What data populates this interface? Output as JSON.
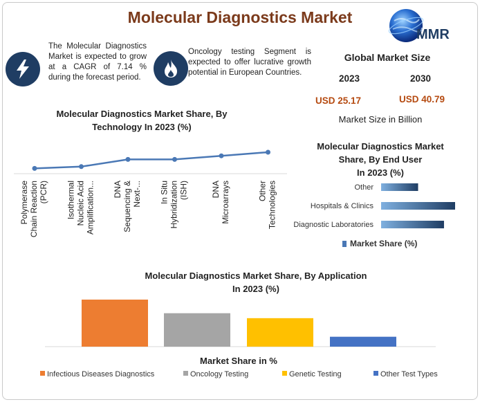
{
  "title": "Molecular Diagnostics Market",
  "logo_text": "MMR",
  "info": [
    {
      "icon": "lightning-icon",
      "text": "The Molecular Diagnostics Market is expected to grow at a CAGR of 7.14 % during the forecast period."
    },
    {
      "icon": "flame-icon",
      "text": "Oncology testing Segment is expected to offer lucrative growth potential in European Countries."
    }
  ],
  "global_market": {
    "title": "Global Market Size",
    "year_a": "2023",
    "year_b": "2030",
    "value_a": "USD 25.17",
    "value_b": "USD 40.79",
    "note": "Market Size in Billion"
  },
  "colors": {
    "title": "#7b3a1b",
    "navy": "#1f3d63",
    "line": "#4a78b5",
    "usd": "#b54a10"
  },
  "chart_data": [
    {
      "type": "line",
      "title": "Molecular Diagnostics Market Share, By Technology In 2023 (%)",
      "title_line1": "Molecular Diagnostics Market Share, By",
      "title_line2": "Technology In 2023 (%)",
      "categories": [
        [
          "Polymerase",
          "Chain Reaction",
          "(PCR)"
        ],
        [
          "Isothermal",
          "Nucleic Acid",
          "Amplification..."
        ],
        [
          "DNA",
          "Sequencing &",
          "Next-..."
        ],
        [
          "In Situ",
          "Hybridization",
          "(ISH)"
        ],
        [
          "DNA",
          "Microarrays"
        ],
        [
          "Other",
          "Technologies"
        ]
      ],
      "values": [
        16,
        17,
        21,
        21,
        23,
        25
      ],
      "ylim": [
        0,
        100
      ]
    },
    {
      "type": "bar",
      "orientation": "horizontal",
      "title": "Molecular Diagnostics Market Share, By End User In 2023 (%)",
      "title_line1": "Molecular Diagnostics Market",
      "title_line2": "Share, By End User",
      "title_line3": "In 2023 (%)",
      "categories": [
        "Other",
        "Hospitals & Clinics",
        "Diagnostic Laboratories"
      ],
      "values": [
        20,
        40,
        34
      ],
      "xlim": [
        0,
        40
      ],
      "legend": "Market Share (%)"
    },
    {
      "type": "bar",
      "title": "Molecular Diagnostics Market Share, By Application In 2023 (%)",
      "title_line1": "Molecular Diagnostics Market Share, By Application",
      "title_line2": "In 2023 (%)",
      "categories": [
        "Infectious Diseases Diagnostics",
        "Oncology Testing",
        "Genetic Testing",
        "Other Test Types"
      ],
      "values": [
        38,
        27,
        23,
        8
      ],
      "ylim": [
        0,
        38
      ],
      "colors": [
        "#ed7d31",
        "#a5a5a5",
        "#ffc000",
        "#4472c4"
      ],
      "xlabel": "Market Share in %"
    }
  ]
}
